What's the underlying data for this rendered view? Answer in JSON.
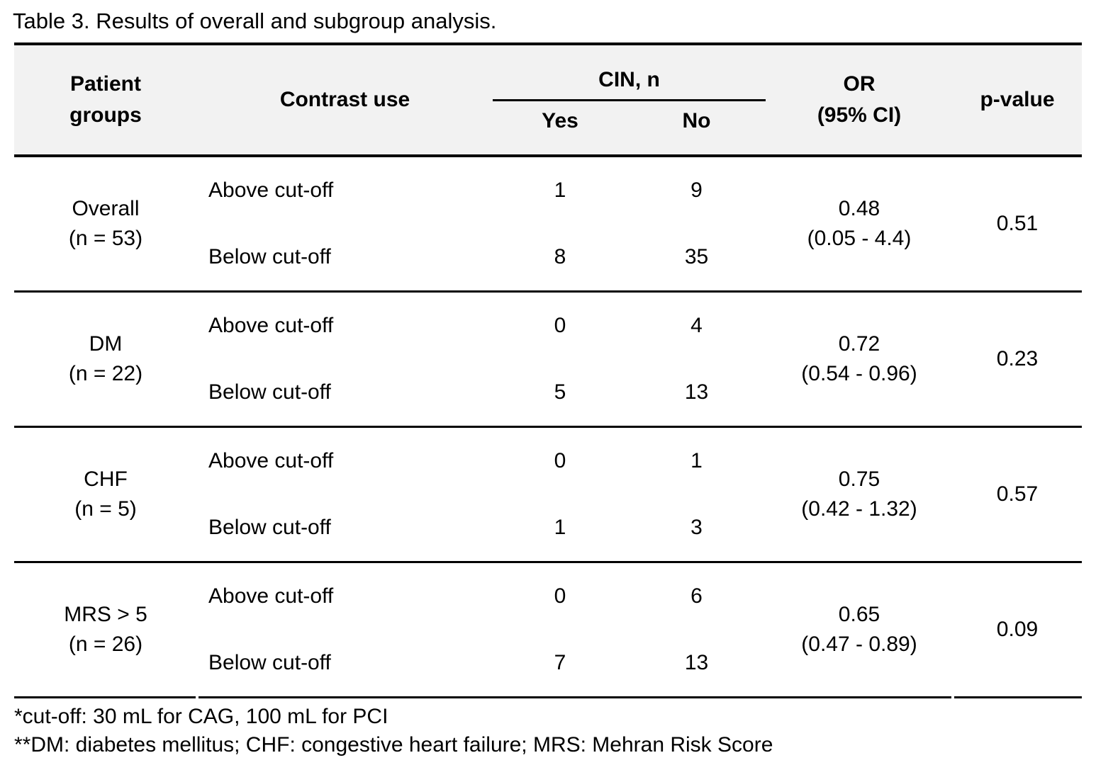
{
  "title": "Table 3. Results of overall and subgroup analysis.",
  "colors": {
    "header_bg": "#f2f2f2",
    "text": "#000000",
    "rule": "#000000"
  },
  "header": {
    "patient_groups": "Patient\ngroups",
    "contrast_use": "Contrast use",
    "cin_group": "CIN, n",
    "cin_yes": "Yes",
    "cin_no": "No",
    "or_ci": "OR\n(95% CI)",
    "p_value": "p-value"
  },
  "groups": [
    {
      "label": "Overall\n(n = 53)",
      "rows": [
        {
          "contrast": "Above cut-off",
          "yes": "1",
          "no": "9"
        },
        {
          "contrast": "Below cut-off",
          "yes": "8",
          "no": "35"
        }
      ],
      "or": "0.48\n(0.05 - 4.4)",
      "p": "0.51"
    },
    {
      "label": "DM\n(n = 22)",
      "rows": [
        {
          "contrast": "Above cut-off",
          "yes": "0",
          "no": "4"
        },
        {
          "contrast": "Below cut-off",
          "yes": "5",
          "no": "13"
        }
      ],
      "or": "0.72\n(0.54 - 0.96)",
      "p": "0.23"
    },
    {
      "label": "CHF\n(n = 5)",
      "rows": [
        {
          "contrast": "Above cut-off",
          "yes": "0",
          "no": "1"
        },
        {
          "contrast": "Below cut-off",
          "yes": "1",
          "no": "3"
        }
      ],
      "or": "0.75\n(0.42 - 1.32)",
      "p": "0.57"
    },
    {
      "label": "MRS > 5\n(n = 26)",
      "rows": [
        {
          "contrast": "Above cut-off",
          "yes": "0",
          "no": "6"
        },
        {
          "contrast": "Below cut-off",
          "yes": "7",
          "no": "13"
        }
      ],
      "or": "0.65\n(0.47 - 0.89)",
      "p": "0.09"
    }
  ],
  "footnotes": [
    "*cut-off: 30 mL for CAG, 100 mL for PCI",
    "**DM: diabetes mellitus; CHF: congestive heart failure; MRS: Mehran Risk Score"
  ]
}
